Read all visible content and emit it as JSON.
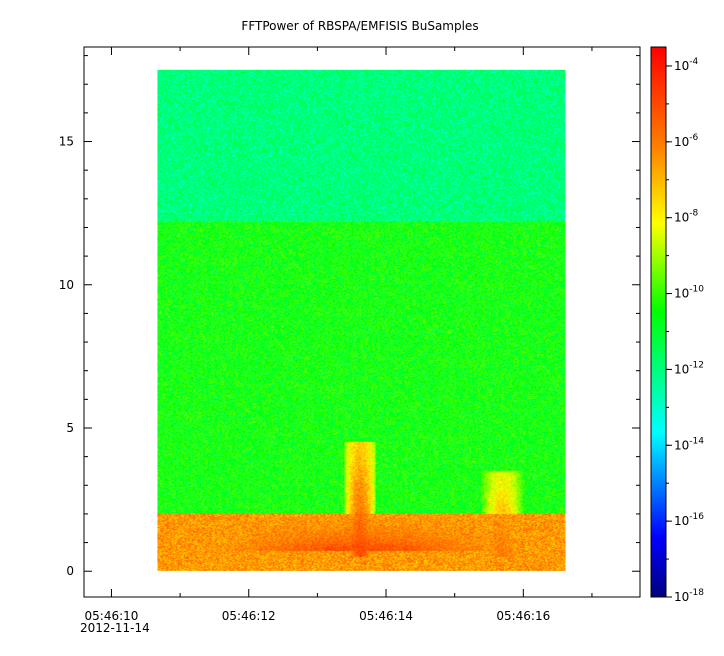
{
  "chart_data": {
    "type": "heatmap",
    "title": "FFTPower of RBSPA/EMFISIS  BuSamples",
    "xlabel": "",
    "ylabel": "",
    "x_tick_labels": [
      "05:46:10",
      "05:46:12",
      "05:46:14",
      "05:46:16"
    ],
    "x_tick_values_seconds": [
      10,
      12,
      14,
      16
    ],
    "x_date_label": "2012-11-14",
    "xlim_seconds": [
      9.6,
      17.7
    ],
    "y_ticks": [
      0,
      5,
      10,
      15
    ],
    "ylim": [
      -0.9,
      18.3
    ],
    "data_extent": {
      "x_seconds": [
        10.67,
        16.62
      ],
      "y": [
        0,
        17.5
      ]
    },
    "colorbar": {
      "scale": "log",
      "range_exponents": [
        -18,
        -3.5
      ],
      "tick_base": "10",
      "tick_exponents": [
        "-4",
        "-6",
        "-8",
        "-10",
        "-12",
        "-14",
        "-16",
        "-18"
      ],
      "colormap": "rainbow",
      "colors": [
        "#00007f",
        "#0000ff",
        "#00ffff",
        "#00ff00",
        "#ffff00",
        "#ff7f00",
        "#ff0000"
      ]
    },
    "spectrum_levels_log10": [
      {
        "y_range": [
          12.2,
          17.5
        ],
        "level": -12.0
      },
      {
        "y_range": [
          2.0,
          12.2
        ],
        "level": -10.5
      },
      {
        "y_range": [
          0.0,
          2.0
        ],
        "level": -6.5
      }
    ],
    "features": [
      {
        "x_seconds": [
          10.67,
          16.62
        ],
        "y_range": [
          0.7,
          1.9
        ],
        "level": -5.0
      },
      {
        "x_seconds": [
          13.4,
          13.85
        ],
        "y_range": [
          0.5,
          4.5
        ],
        "level": -5.0
      },
      {
        "x_seconds": [
          15.4,
          16.0
        ],
        "y_range": [
          0.5,
          3.5
        ],
        "level": -6.0
      }
    ]
  }
}
